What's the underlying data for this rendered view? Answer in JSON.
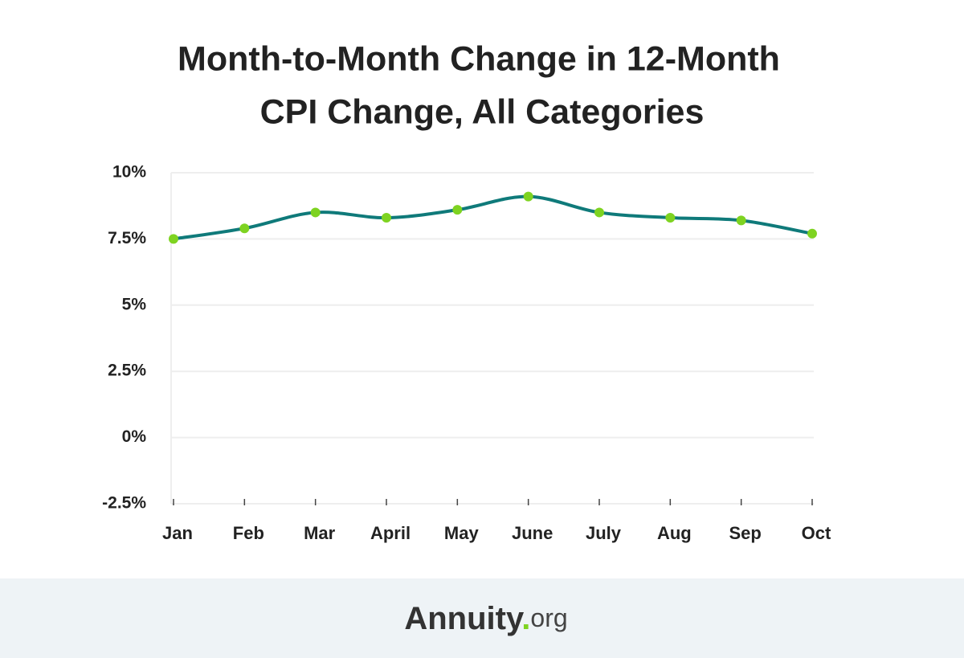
{
  "chart_data": {
    "type": "line",
    "title": [
      "Month-to-Month Change in 12-Month",
      "CPI Change, All Categories"
    ],
    "categories": [
      "Jan",
      "Feb",
      "Mar",
      "April",
      "May",
      "June",
      "July",
      "Aug",
      "Sep",
      "Oct"
    ],
    "series": [
      {
        "color": "#0f7a7a",
        "marker_color": "#7ed321",
        "values": [
          7.5,
          7.9,
          8.5,
          8.3,
          8.6,
          9.1,
          8.5,
          8.3,
          8.2,
          7.7
        ]
      }
    ],
    "ylim": [
      -2.5,
      10
    ],
    "yticks": [
      {
        "value": -2.5,
        "label": "-2.5%"
      },
      {
        "value": 0,
        "label": "0%"
      },
      {
        "value": 2.5,
        "label": "2.5%"
      },
      {
        "value": 5,
        "label": "5%"
      },
      {
        "value": 7.5,
        "label": "7.5%"
      },
      {
        "value": 10,
        "label": "10%"
      }
    ],
    "grid": true
  },
  "footer": {
    "brand": "Annuity",
    "dot": ".",
    "suffix": "org"
  }
}
